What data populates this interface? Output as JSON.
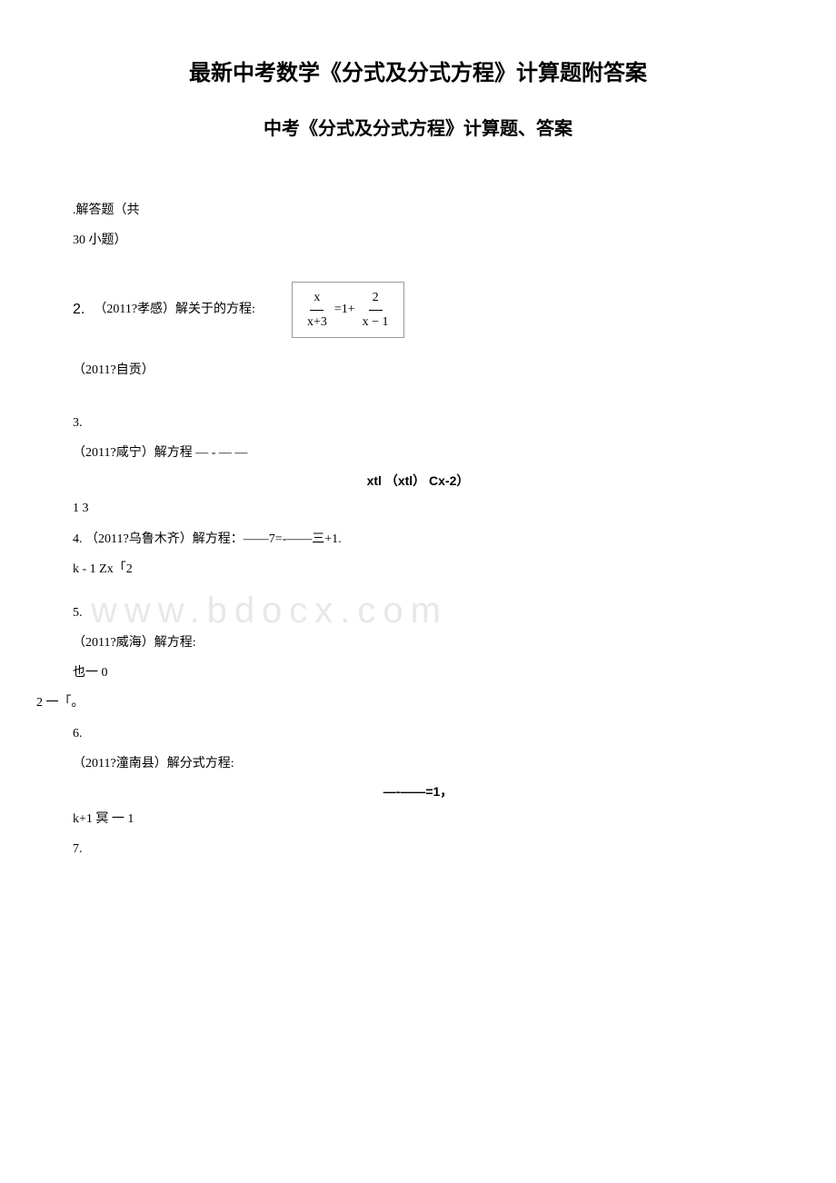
{
  "title_main": "最新中考数学《分式及分式方程》计算题附答案",
  "title_sub": "中考《分式及分式方程》计算题、答案",
  "intro_1": ".解答题（共",
  "intro_2": "30 小题）",
  "p2": {
    "num": "2.",
    "text": "（2011?孝感）解关于的方程:",
    "frac1_num": "x",
    "frac1_den": "x+3",
    "mid": "=1+",
    "frac2_num": "2",
    "frac2_den": "x − 1"
  },
  "p2b": "（2011?自贡）",
  "p3": {
    "num": "3.",
    "text": "（2011?咸宁）解方程 — - — —",
    "center": "xtl （xtl） Cx-2）"
  },
  "p4": {
    "line1": "1 3",
    "line2": "4. （2011?乌鲁木齐）解方程：——7=-——三+1.",
    "line3": "k - 1 Zx「2"
  },
  "p5": {
    "num": "5.",
    "text": "（2011?威海）解方程:",
    "line3": "也一 0",
    "line4": "2 一「。"
  },
  "p6": {
    "num": "6.",
    "text": "（2011?潼南县）解分式方程:",
    "center": "—-——=1，",
    "line3": "k+1 冥 一 1"
  },
  "p7": {
    "num": "7."
  },
  "watermark": "www.bdocx.com"
}
